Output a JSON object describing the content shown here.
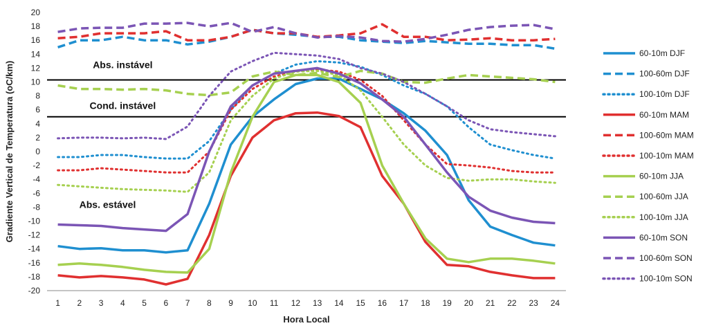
{
  "chart_data": {
    "type": "line",
    "xlabel": "Hora Local",
    "ylabel": "Gradiente Vertical de Temperatura (oC/km)",
    "ylim": [
      -20,
      20
    ],
    "yticks": [
      -20,
      -18,
      -16,
      -14,
      -12,
      -10,
      -8,
      -6,
      -4,
      -2,
      0,
      2,
      4,
      6,
      8,
      10,
      12,
      14,
      16,
      18,
      20
    ],
    "x": [
      1,
      2,
      3,
      4,
      5,
      6,
      7,
      8,
      9,
      10,
      11,
      12,
      13,
      14,
      15,
      16,
      17,
      18,
      19,
      20,
      21,
      22,
      23,
      24
    ],
    "grid": false,
    "legend_position": "right",
    "reference_lines": [
      10.3,
      5.0
    ],
    "annotations": [
      {
        "text": "Abs. instável",
        "x": 4,
        "y": 12.5
      },
      {
        "text": "Cond. instável",
        "x": 4,
        "y": 6.6
      },
      {
        "text": "Abs. estável",
        "x": 3.3,
        "y": -7.6
      }
    ],
    "series": [
      {
        "name": "60-10m DJF",
        "color": "#1f8fd0",
        "style": "solid",
        "values": [
          -13.6,
          -14.0,
          -13.9,
          -14.2,
          -14.2,
          -14.5,
          -14.2,
          -7.5,
          1.0,
          5.0,
          7.5,
          9.7,
          10.5,
          10.5,
          9.0,
          7.5,
          5.5,
          3.0,
          -0.5,
          -7.0,
          -10.8,
          -12.0,
          -13.1,
          -13.5
        ]
      },
      {
        "name": "100-60m DJF",
        "color": "#1f8fd0",
        "style": "dashed",
        "values": [
          15.0,
          16.0,
          16.0,
          16.5,
          16.0,
          16.0,
          15.4,
          15.8,
          16.5,
          17.5,
          17.0,
          16.8,
          16.5,
          16.5,
          16.0,
          15.8,
          15.6,
          15.9,
          15.7,
          15.5,
          15.5,
          15.3,
          15.3,
          14.8
        ]
      },
      {
        "name": "100-10m DJF",
        "color": "#1f8fd0",
        "style": "dotted",
        "values": [
          -0.8,
          -0.8,
          -0.5,
          -0.5,
          -0.8,
          -1.0,
          -1.0,
          1.5,
          6.0,
          9.5,
          11.2,
          12.5,
          13.0,
          12.8,
          12.2,
          11.0,
          9.5,
          8.3,
          6.5,
          3.5,
          1.0,
          0.2,
          -0.5,
          -1.0
        ]
      },
      {
        "name": "60-10m MAM",
        "color": "#e03030",
        "style": "solid",
        "values": [
          -17.8,
          -18.1,
          -17.9,
          -18.1,
          -18.4,
          -19.1,
          -18.3,
          -12.0,
          -3.5,
          2.0,
          4.5,
          5.5,
          5.6,
          5.1,
          3.5,
          -3.5,
          -7.5,
          -13.0,
          -16.3,
          -16.5,
          -17.3,
          -17.8,
          -18.2,
          -18.2
        ]
      },
      {
        "name": "100-60m MAM",
        "color": "#e03030",
        "style": "dashed",
        "values": [
          16.3,
          16.5,
          17.0,
          17.0,
          17.0,
          17.3,
          16.0,
          16.0,
          16.5,
          17.5,
          17.0,
          17.0,
          16.5,
          16.7,
          17.0,
          18.3,
          16.5,
          16.5,
          16.0,
          16.1,
          16.3,
          16.0,
          16.0,
          16.2
        ]
      },
      {
        "name": "100-10m MAM",
        "color": "#e03030",
        "style": "dotted",
        "values": [
          -2.7,
          -2.7,
          -2.4,
          -2.6,
          -2.8,
          -3.0,
          -3.0,
          0.0,
          6.0,
          9.0,
          10.8,
          11.5,
          11.8,
          11.5,
          10.3,
          8.0,
          4.5,
          1.0,
          -1.8,
          -2.0,
          -2.3,
          -2.8,
          -3.0,
          -3.0
        ]
      },
      {
        "name": "60-10m JJA",
        "color": "#a6d050",
        "style": "solid",
        "values": [
          -16.3,
          -16.1,
          -16.3,
          -16.6,
          -17.0,
          -17.3,
          -17.4,
          -14.0,
          -3.0,
          5.0,
          10.0,
          11.0,
          11.0,
          10.0,
          7.0,
          -2.0,
          -7.5,
          -12.5,
          -15.4,
          -15.9,
          -15.4,
          -15.4,
          -15.7,
          -16.1
        ]
      },
      {
        "name": "100-60m JJA",
        "color": "#a6d050",
        "style": "dashed",
        "values": [
          9.5,
          9.0,
          9.0,
          8.9,
          9.0,
          8.8,
          8.3,
          8.1,
          8.5,
          10.8,
          11.5,
          11.0,
          11.3,
          10.7,
          11.6,
          11.2,
          10.0,
          9.9,
          10.5,
          11.0,
          10.8,
          10.6,
          10.4,
          10.0
        ]
      },
      {
        "name": "100-10m JJA",
        "color": "#a6d050",
        "style": "dotted",
        "values": [
          -4.8,
          -5.0,
          -5.2,
          -5.4,
          -5.5,
          -5.6,
          -5.8,
          -3.0,
          4.5,
          8.0,
          10.5,
          11.5,
          11.6,
          11.0,
          8.8,
          5.0,
          1.0,
          -2.0,
          -3.8,
          -4.2,
          -4.0,
          -4.0,
          -4.3,
          -4.5
        ]
      },
      {
        "name": "60-10m SON",
        "color": "#7b55b5",
        "style": "solid",
        "values": [
          -10.5,
          -10.6,
          -10.7,
          -11.0,
          -11.2,
          -11.4,
          -9.0,
          0.0,
          6.5,
          9.5,
          11.2,
          11.6,
          12.0,
          11.2,
          9.8,
          7.5,
          5.0,
          1.0,
          -3.0,
          -6.5,
          -8.5,
          -9.5,
          -10.1,
          -10.3
        ]
      },
      {
        "name": "100-60m SON",
        "color": "#7b55b5",
        "style": "dashed",
        "values": [
          17.2,
          17.7,
          17.8,
          17.8,
          18.4,
          18.4,
          18.5,
          18.0,
          18.5,
          17.2,
          17.9,
          17.0,
          16.4,
          16.6,
          16.4,
          15.9,
          15.8,
          16.2,
          16.8,
          17.5,
          17.9,
          18.1,
          18.2,
          17.6
        ]
      },
      {
        "name": "100-10m SON",
        "color": "#7b55b5",
        "style": "dotted",
        "values": [
          1.9,
          2.0,
          2.0,
          1.9,
          2.0,
          1.8,
          3.6,
          8.0,
          11.5,
          13.0,
          14.2,
          14.0,
          13.8,
          13.3,
          12.0,
          11.2,
          10.0,
          8.3,
          6.5,
          4.5,
          3.2,
          2.8,
          2.5,
          2.2
        ]
      }
    ]
  }
}
